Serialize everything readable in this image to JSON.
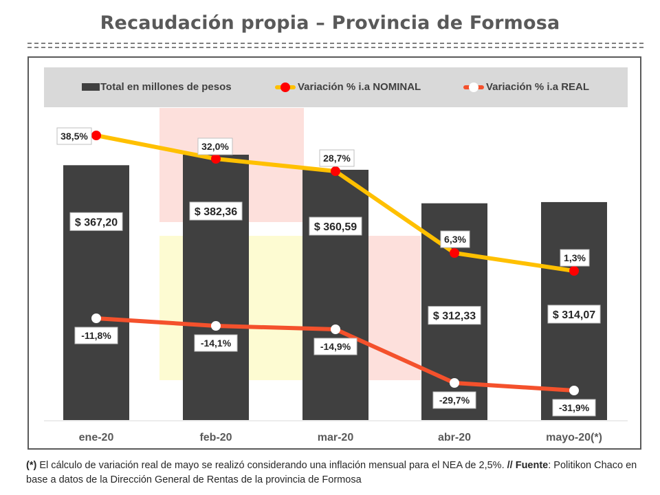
{
  "header": {
    "title": "Recaudación propia – Provincia de Formosa"
  },
  "legend": {
    "bars_label": "Total en millones de pesos",
    "nominal_label": "Variación % i.a NOMINAL",
    "real_label": "Variación % i.a REAL"
  },
  "colors": {
    "bars": "#404040",
    "nominal_line": "#ffc000",
    "nominal_marker": "#ff0000",
    "real_line": "#f4512c",
    "real_marker": "#ffffff",
    "legend_bg": "#d9d9d9"
  },
  "chart_data": {
    "type": "bar",
    "categories": [
      "ene-20",
      "feb-20",
      "mar-20",
      "abr-20",
      "mayo-20(*)"
    ],
    "series": [
      {
        "name": "Total en millones de pesos",
        "kind": "bar",
        "values": [
          367.2,
          382.36,
          360.59,
          312.33,
          314.07
        ],
        "labels": [
          "$ 367,20",
          "$ 382,36",
          "$ 360,59",
          "$ 312,33",
          "$ 314,07"
        ]
      },
      {
        "name": "Variación % i.a NOMINAL",
        "kind": "line",
        "values": [
          38.5,
          32.0,
          28.7,
          6.3,
          1.3
        ],
        "labels": [
          "38,5%",
          "32,0%",
          "28,7%",
          "6,3%",
          "1,3%"
        ]
      },
      {
        "name": "Variación % i.a REAL",
        "kind": "line",
        "values": [
          -11.8,
          -14.1,
          -14.9,
          -29.7,
          -31.9
        ],
        "labels": [
          "-11,8%",
          "-14,1%",
          "-14,9%",
          "-29,7%",
          "-31,9%"
        ]
      }
    ],
    "title": "Recaudación propia – Provincia de Formosa",
    "legend_position": "top",
    "grid": false
  },
  "footnote": {
    "marker": "(*)",
    "text1": " El cálculo de variación real de mayo se realizó considerando una inflación mensual para el NEA de 2,5%. ",
    "source_label": "// Fuente",
    "text2": ": Politikon Chaco en base a datos de la Dirección General de Rentas de la provincia de Formosa"
  }
}
